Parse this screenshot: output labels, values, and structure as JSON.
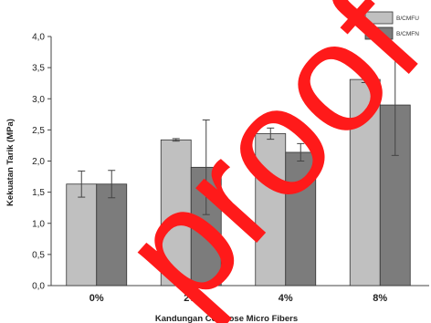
{
  "chart_data": {
    "type": "bar",
    "categories": [
      "0%",
      "2%",
      "4%",
      "8%"
    ],
    "series": [
      {
        "name": "B/CMFU",
        "color": "#c0c0c0",
        "values": [
          1.63,
          2.34,
          2.44,
          3.31
        ],
        "errors": [
          0.21,
          0.02,
          0.09,
          0.05
        ]
      },
      {
        "name": "B/CMFN",
        "color": "#7c7c7c",
        "values": [
          1.63,
          1.9,
          2.14,
          2.9
        ],
        "errors": [
          0.22,
          0.76,
          0.14,
          0.81
        ]
      }
    ],
    "xlabel": "Kandungan Cellulose Micro Fibers",
    "ylabel": "Kekuatan Tarik (MPa)",
    "ylim": [
      0,
      4
    ],
    "yticks": [
      "0,0",
      "0,5",
      "1,0",
      "1,5",
      "2,0",
      "2,5",
      "3,0",
      "3,5",
      "4,0"
    ],
    "legend": "top-right",
    "grid": false
  },
  "watermark": {
    "text": "proof",
    "color": "#ff1a1a"
  }
}
